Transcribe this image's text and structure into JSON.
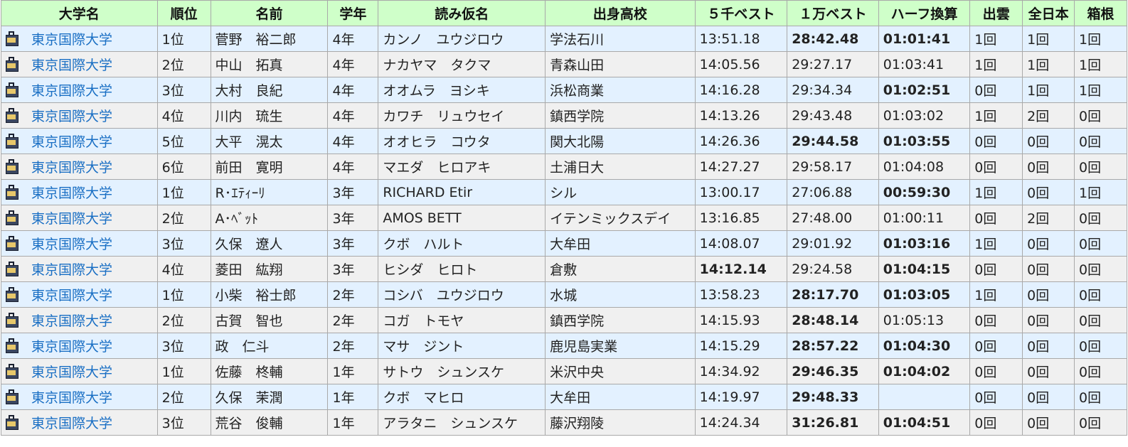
{
  "headers": [
    "大学名",
    "順位",
    "名前",
    "学年",
    "読み仮名",
    "出身高校",
    "５千ベスト",
    "１万ベスト",
    "ハーフ換算",
    "出雲",
    "全日本",
    "箱根"
  ],
  "rows": [
    {
      "university": "東京国際大学",
      "rank": "1位",
      "name": "菅野　裕二郎",
      "year": "4年",
      "reading": "カンノ　ユウジロウ",
      "school": "学法石川",
      "best5000": "13:51.18",
      "best10000": "28:42.48",
      "half": "01:01:41",
      "izumo": "1回",
      "zennihon": "1回",
      "hakone": "1回",
      "b10000": "bold",
      "bhalf": "bold"
    },
    {
      "university": "東京国際大学",
      "rank": "2位",
      "name": "中山　拓真",
      "year": "4年",
      "reading": "ナカヤマ　タクマ",
      "school": "青森山田",
      "best5000": "14:05.56",
      "best10000": "29:27.17",
      "half": "01:03:41",
      "izumo": "1回",
      "zennihon": "1回",
      "hakone": "1回"
    },
    {
      "university": "東京国際大学",
      "rank": "3位",
      "name": "大村　良紀",
      "year": "4年",
      "reading": "オオムラ　ヨシキ",
      "school": "浜松商業",
      "best5000": "14:16.28",
      "best10000": "29:34.34",
      "half": "01:02:51",
      "izumo": "0回",
      "zennihon": "1回",
      "hakone": "1回",
      "bhalf": "bold"
    },
    {
      "university": "東京国際大学",
      "rank": "4位",
      "name": "川内　琉生",
      "year": "4年",
      "reading": "カワチ　リュウセイ",
      "school": "鎮西学院",
      "best5000": "14:13.26",
      "best10000": "29:43.48",
      "half": "01:03:02",
      "izumo": "1回",
      "zennihon": "2回",
      "hakone": "0回"
    },
    {
      "university": "東京国際大学",
      "rank": "5位",
      "name": "大平　滉太",
      "year": "4年",
      "reading": "オオヒラ　コウタ",
      "school": "関大北陽",
      "best5000": "14:26.36",
      "best10000": "29:44.58",
      "half": "01:03:55",
      "izumo": "0回",
      "zennihon": "0回",
      "hakone": "0回",
      "b10000": "bold",
      "bhalf": "bold"
    },
    {
      "university": "東京国際大学",
      "rank": "6位",
      "name": "前田　寛明",
      "year": "4年",
      "reading": "マエダ　ヒロアキ",
      "school": "土浦日大",
      "best5000": "14:27.27",
      "best10000": "29:58.17",
      "half": "01:04:08",
      "izumo": "0回",
      "zennihon": "0回",
      "hakone": "0回"
    },
    {
      "university": "東京国際大学",
      "rank": "1位",
      "name": "R･ｴﾃｨｰﾘ",
      "year": "3年",
      "reading": "RICHARD Etir",
      "school": "シル",
      "best5000": "13:00.17",
      "best10000": "27:06.88",
      "half": "00:59:30",
      "izumo": "1回",
      "zennihon": "0回",
      "hakone": "1回",
      "bhalf": "bold"
    },
    {
      "university": "東京国際大学",
      "rank": "2位",
      "name": "A･ﾍﾞｯﾄ",
      "year": "3年",
      "reading": "AMOS BETT",
      "school": "イテンミックスデイ",
      "best5000": "13:16.85",
      "best10000": "27:48.00",
      "half": "01:00:11",
      "izumo": "0回",
      "zennihon": "2回",
      "hakone": "0回"
    },
    {
      "university": "東京国際大学",
      "rank": "3位",
      "name": "久保　遼人",
      "year": "3年",
      "reading": "クボ　ハルト",
      "school": "大牟田",
      "best5000": "14:08.07",
      "best10000": "29:01.92",
      "half": "01:03:16",
      "izumo": "1回",
      "zennihon": "0回",
      "hakone": "0回",
      "bhalf": "bold"
    },
    {
      "university": "東京国際大学",
      "rank": "4位",
      "name": "菱田　紘翔",
      "year": "3年",
      "reading": "ヒシダ　ヒロト",
      "school": "倉敷",
      "best5000": "14:12.14",
      "best10000": "29:24.58",
      "half": "01:04:15",
      "izumo": "0回",
      "zennihon": "0回",
      "hakone": "0回",
      "b5000": "bold",
      "bhalf": "bold"
    },
    {
      "university": "東京国際大学",
      "rank": "1位",
      "name": "小柴　裕士郎",
      "year": "2年",
      "reading": "コシバ　ユウジロウ",
      "school": "水城",
      "best5000": "13:58.23",
      "best10000": "28:17.70",
      "half": "01:03:05",
      "izumo": "1回",
      "zennihon": "0回",
      "hakone": "0回",
      "b10000": "bold",
      "bhalf": "bold"
    },
    {
      "university": "東京国際大学",
      "rank": "2位",
      "name": "古賀　智也",
      "year": "2年",
      "reading": "コガ　トモヤ",
      "school": "鎮西学院",
      "best5000": "14:15.93",
      "best10000": "28:48.14",
      "half": "01:05:13",
      "izumo": "0回",
      "zennihon": "0回",
      "hakone": "0回",
      "b10000": "bold"
    },
    {
      "university": "東京国際大学",
      "rank": "3位",
      "name": "政　仁斗",
      "year": "2年",
      "reading": "マサ　ジント",
      "school": "鹿児島実業",
      "best5000": "14:15.29",
      "best10000": "28:57.22",
      "half": "01:04:30",
      "izumo": "0回",
      "zennihon": "0回",
      "hakone": "0回",
      "b10000": "bold",
      "bhalf": "bold"
    },
    {
      "university": "東京国際大学",
      "rank": "1位",
      "name": "佐藤　柊輔",
      "year": "1年",
      "reading": "サトウ　シュンスケ",
      "school": "米沢中央",
      "best5000": "14:34.92",
      "best10000": "29:46.35",
      "half": "01:04:02",
      "izumo": "0回",
      "zennihon": "0回",
      "hakone": "0回",
      "b10000": "bold",
      "bhalf": "bold"
    },
    {
      "university": "東京国際大学",
      "rank": "2位",
      "name": "久保　茉潤",
      "year": "1年",
      "reading": "クボ　マヒロ",
      "school": "大牟田",
      "best5000": "14:19.97",
      "best10000": "29:48.33",
      "half": "",
      "izumo": "0回",
      "zennihon": "0回",
      "hakone": "0回",
      "b10000": "blue"
    },
    {
      "university": "東京国際大学",
      "rank": "3位",
      "name": "荒谷　俊輔",
      "year": "1年",
      "reading": "アラタニ　シュンスケ",
      "school": "藤沢翔陵",
      "best5000": "14:24.34",
      "best10000": "31:26.81",
      "half": "01:04:51",
      "izumo": "0回",
      "zennihon": "0回",
      "hakone": "0回",
      "b10000": "blue",
      "bhalf": "blue"
    }
  ]
}
